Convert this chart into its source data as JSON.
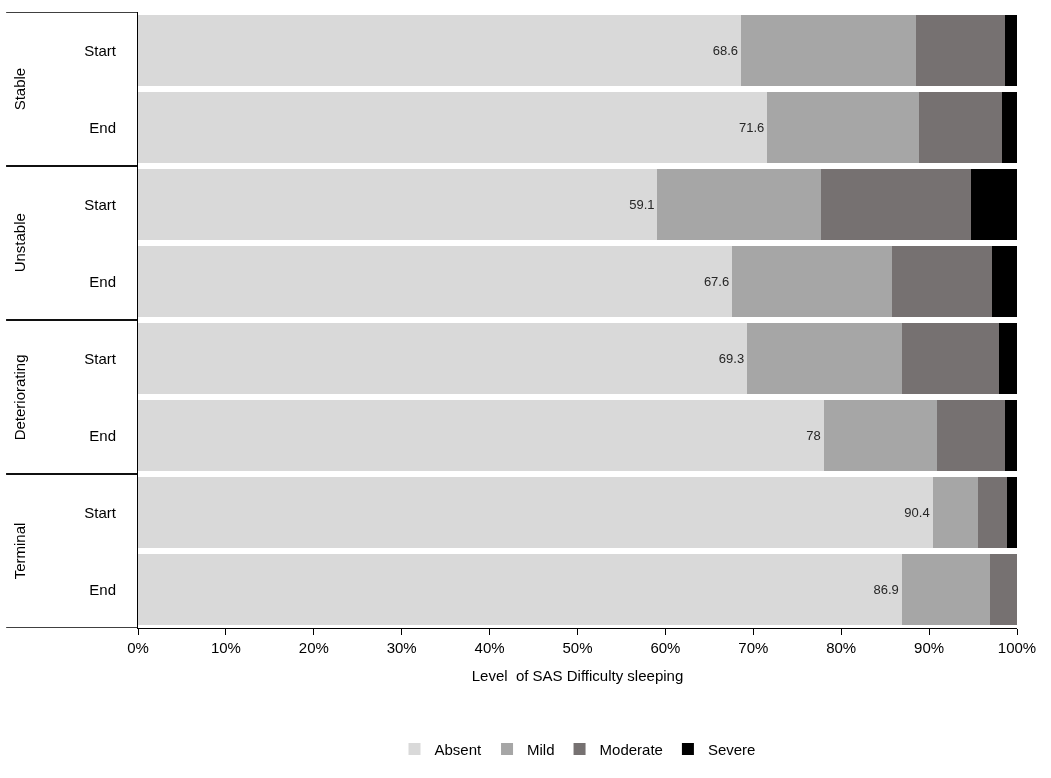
{
  "chart_data": {
    "type": "bar",
    "orientation": "horizontal",
    "stacked": true,
    "xlabel": "Level  of SAS Difficulty sleeping",
    "categories": [
      "Start",
      "End",
      "Start",
      "End",
      "Start",
      "End",
      "Start",
      "End"
    ],
    "annotations": [
      "Stable",
      "Unstable",
      "Deteriorating",
      "Terminal"
    ],
    "series": [
      {
        "name": "Absent",
        "color": "#d9d9d9",
        "values": [
          68.6,
          71.6,
          59.1,
          67.6,
          69.3,
          78,
          90.4,
          86.9
        ],
        "value_labels": [
          "68.6",
          "71.6",
          "59.1",
          "67.6",
          "69.3",
          "78",
          "90.4",
          "86.9"
        ]
      },
      {
        "name": "Mild",
        "color": "#a6a6a6",
        "values": [
          19.9,
          17.2,
          18.6,
          18.2,
          17.6,
          12.9,
          5.2,
          10.0
        ]
      },
      {
        "name": "Moderate",
        "color": "#767171",
        "values": [
          10.1,
          9.5,
          17.1,
          11.3,
          11.0,
          7.7,
          3.3,
          3.1
        ]
      },
      {
        "name": "Severe",
        "color": "#000000",
        "values": [
          1.4,
          1.7,
          5.2,
          2.9,
          2.1,
          1.4,
          1.1,
          0
        ]
      }
    ],
    "xlim": [
      0,
      100
    ],
    "xticks": [
      {
        "value": 0,
        "label": "0%"
      },
      {
        "value": 10,
        "label": "10%"
      },
      {
        "value": 20,
        "label": "20%"
      },
      {
        "value": 30,
        "label": "30%"
      },
      {
        "value": 40,
        "label": "40%"
      },
      {
        "value": 50,
        "label": "50%"
      },
      {
        "value": 60,
        "label": "60%"
      },
      {
        "value": 70,
        "label": "70%"
      },
      {
        "value": 80,
        "label": "80%"
      },
      {
        "value": 90,
        "label": "90%"
      },
      {
        "value": 100,
        "label": "100%"
      }
    ],
    "legend": "bottom"
  }
}
